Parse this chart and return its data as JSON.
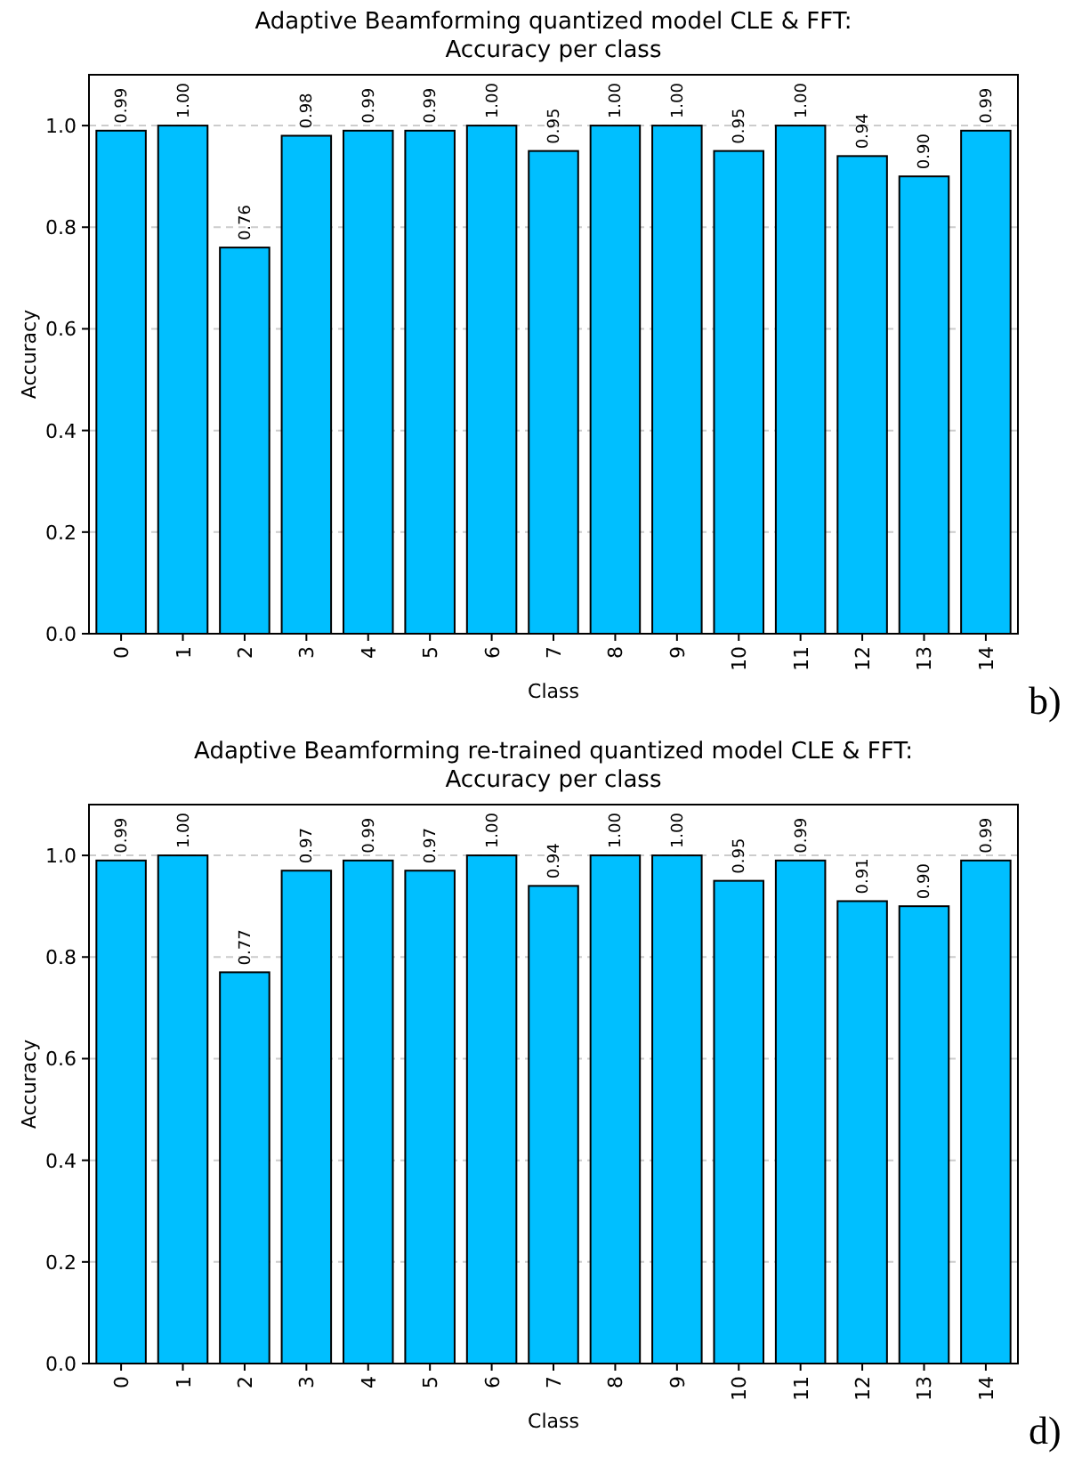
{
  "chart_data": [
    {
      "type": "bar",
      "title": "Adaptive Beamforming quantized model CLE & FFT:",
      "subtitle": "Accuracy per class",
      "xlabel": "Class",
      "ylabel": "Accuracy",
      "categories": [
        "0",
        "1",
        "2",
        "3",
        "4",
        "5",
        "6",
        "7",
        "8",
        "9",
        "10",
        "11",
        "12",
        "13",
        "14"
      ],
      "values": [
        0.99,
        1.0,
        0.76,
        0.98,
        0.99,
        0.99,
        1.0,
        0.95,
        1.0,
        1.0,
        0.95,
        1.0,
        0.94,
        0.9,
        0.99
      ],
      "value_labels": [
        "0.99",
        "1.00",
        "0.76",
        "0.98",
        "0.99",
        "0.99",
        "1.00",
        "0.95",
        "1.00",
        "1.00",
        "0.95",
        "1.00",
        "0.94",
        "0.90",
        "0.99"
      ],
      "color": "#00bfff",
      "ylim": [
        0,
        1.1
      ],
      "yticks": [
        {
          "value": 0,
          "label": "0.0"
        },
        {
          "value": 0.2,
          "label": "0.2"
        },
        {
          "value": 0.4,
          "label": "0.4"
        },
        {
          "value": 0.6,
          "label": "0.6"
        },
        {
          "value": 0.8,
          "label": "0.8"
        },
        {
          "value": 1,
          "label": "1.0"
        }
      ],
      "grid": "y",
      "annotations": [
        "b)"
      ]
    },
    {
      "type": "bar",
      "title": "Adaptive Beamforming re-trained quantized model CLE & FFT:",
      "subtitle": "Accuracy per class",
      "xlabel": "Class",
      "ylabel": "Accuracy",
      "categories": [
        "0",
        "1",
        "2",
        "3",
        "4",
        "5",
        "6",
        "7",
        "8",
        "9",
        "10",
        "11",
        "12",
        "13",
        "14"
      ],
      "values": [
        0.99,
        1.0,
        0.77,
        0.97,
        0.99,
        0.97,
        1.0,
        0.94,
        1.0,
        1.0,
        0.95,
        0.99,
        0.91,
        0.9,
        0.99
      ],
      "value_labels": [
        "0.99",
        "1.00",
        "0.77",
        "0.97",
        "0.99",
        "0.97",
        "1.00",
        "0.94",
        "1.00",
        "1.00",
        "0.95",
        "0.99",
        "0.91",
        "0.90",
        "0.99"
      ],
      "color": "#00bfff",
      "ylim": [
        0,
        1.1
      ],
      "yticks": [
        {
          "value": 0,
          "label": "0.0"
        },
        {
          "value": 0.2,
          "label": "0.2"
        },
        {
          "value": 0.4,
          "label": "0.4"
        },
        {
          "value": 0.6,
          "label": "0.6"
        },
        {
          "value": 0.8,
          "label": "0.8"
        },
        {
          "value": 1,
          "label": "1.0"
        }
      ],
      "grid": "y",
      "annotations": [
        "d)"
      ]
    }
  ]
}
